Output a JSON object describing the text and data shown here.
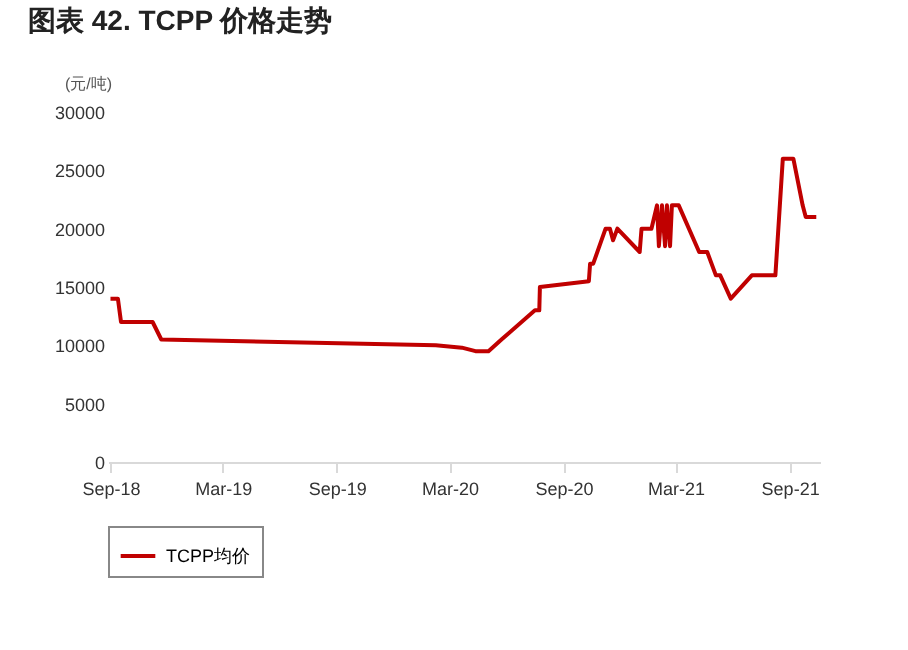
{
  "chart_data": {
    "type": "line",
    "title": "图表 42. TCPP 价格走势",
    "ylabel": "(元/吨)",
    "x": [
      "2018-09-01",
      "2018-09-13",
      "2018-09-18",
      "2018-11-08",
      "2018-11-22",
      "2020-02-08",
      "2020-03-21",
      "2020-04-12",
      "2020-05-03",
      "2020-05-24",
      "2020-07-17",
      "2020-07-24",
      "2020-07-25",
      "2020-10-12",
      "2020-10-14",
      "2020-10-19",
      "2020-11-08",
      "2020-11-15",
      "2020-11-20",
      "2020-11-27",
      "2021-01-02",
      "2021-01-05",
      "2021-01-21",
      "2021-01-30",
      "2021-02-02",
      "2021-02-07",
      "2021-02-12",
      "2021-02-15",
      "2021-02-20",
      "2021-02-23",
      "2021-03-06",
      "2021-04-08",
      "2021-04-21",
      "2021-05-05",
      "2021-05-12",
      "2021-05-29",
      "2021-07-02",
      "2021-08-09",
      "2021-08-21",
      "2021-09-07",
      "2021-09-22",
      "2021-09-27",
      "2021-10-14"
    ],
    "series": [
      {
        "name": "TCPP均价",
        "color": "#c00000",
        "values": [
          14000,
          14000,
          12000,
          12000,
          10500,
          10000,
          9800,
          9500,
          9500,
          10500,
          13000,
          13000,
          15000,
          15500,
          17000,
          17000,
          20000,
          20000,
          19000,
          20000,
          18000,
          20000,
          20000,
          22000,
          18500,
          22000,
          18500,
          22000,
          18500,
          22000,
          22000,
          18000,
          18000,
          16000,
          16000,
          14000,
          16000,
          16000,
          26000,
          26000,
          22000,
          21000,
          21000
        ]
      }
    ],
    "xlim": [
      "2018-08-28",
      "2021-10-20"
    ],
    "xticks": [
      {
        "value": "2018-09-01",
        "label": "Sep-18"
      },
      {
        "value": "2019-03-01",
        "label": "Mar-19"
      },
      {
        "value": "2019-09-01",
        "label": "Sep-19"
      },
      {
        "value": "2020-03-01",
        "label": "Mar-20"
      },
      {
        "value": "2020-09-01",
        "label": "Sep-20"
      },
      {
        "value": "2021-03-01",
        "label": "Mar-21"
      },
      {
        "value": "2021-09-01",
        "label": "Sep-21"
      }
    ],
    "ylim": [
      0,
      30000
    ],
    "yticks": [
      0,
      5000,
      10000,
      15000,
      20000,
      25000,
      30000
    ],
    "legend": "bottom",
    "grid": false,
    "line_style": "solid",
    "marker": "none"
  }
}
